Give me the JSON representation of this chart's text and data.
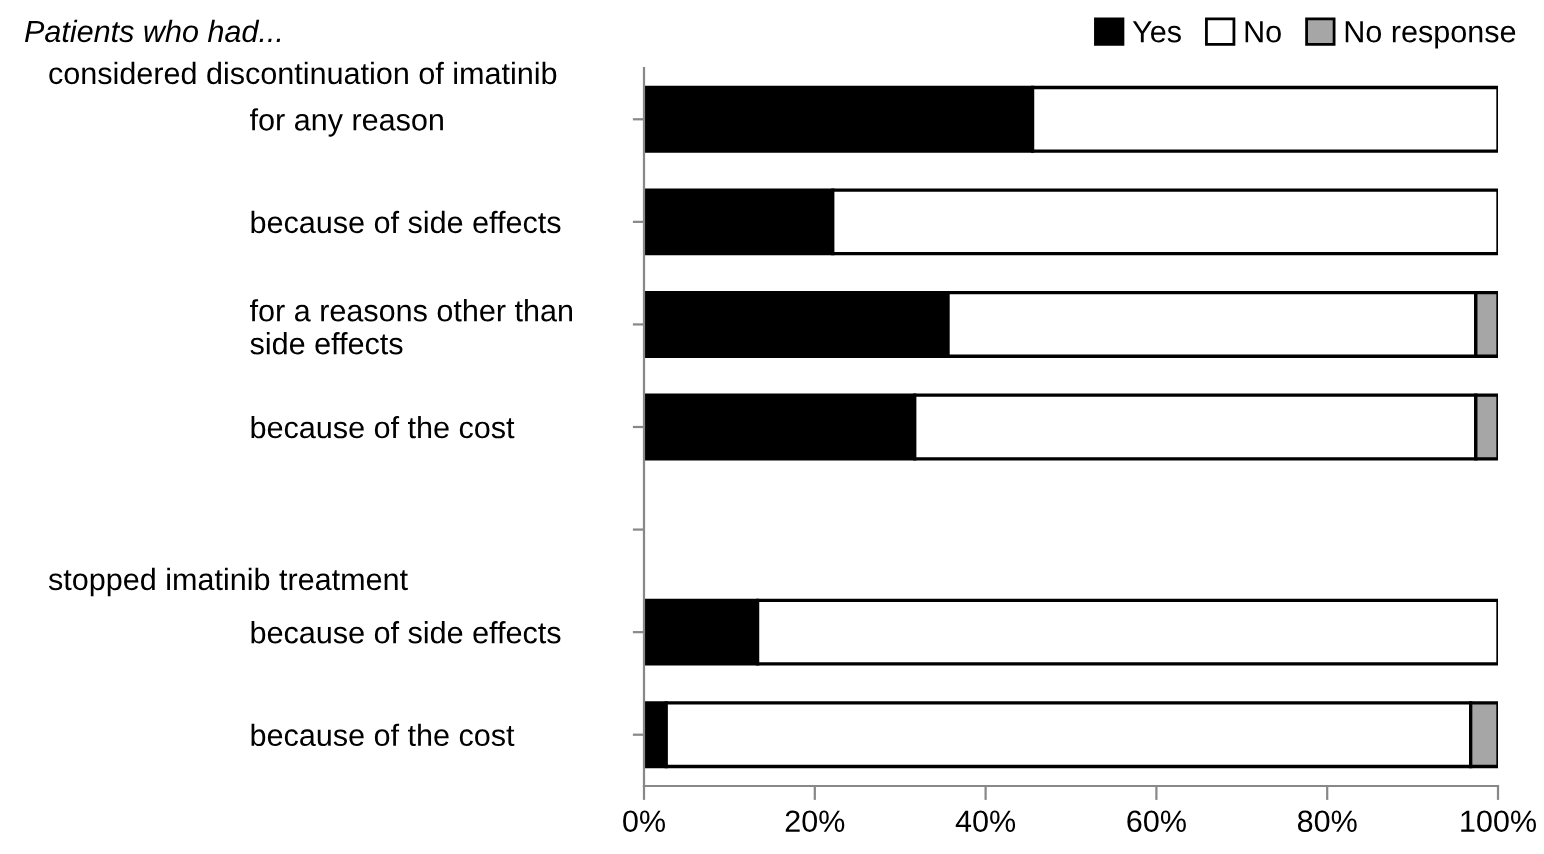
{
  "chart_data": {
    "type": "bar",
    "orientation": "horizontal",
    "stacked": true,
    "title": "Patients who had...",
    "annotations": [
      "considered discontinuation of imatinib",
      "stopped imatinib treatment"
    ],
    "categories": [
      "for any reason",
      "because of side effects",
      "for a reasons other than\nside effects",
      "because of the cost",
      null,
      "because of side effects",
      "because of the cost"
    ],
    "series": [
      {
        "name": "Yes",
        "color": "#000000",
        "values": [
          45.5,
          22.1,
          35.6,
          31.7,
          null,
          13.3,
          2.6
        ]
      },
      {
        "name": "No",
        "color": "#ffffff",
        "values": [
          54.5,
          77.9,
          61.8,
          65.7,
          null,
          86.7,
          94.2
        ]
      },
      {
        "name": "No response",
        "color": "#a6a6a6",
        "values": [
          0,
          0,
          2.6,
          2.6,
          null,
          0,
          3.2
        ]
      }
    ],
    "xlim": [
      0,
      100
    ],
    "xticks": [
      {
        "value": 0,
        "label": "0%"
      },
      {
        "value": 20,
        "label": "20%"
      },
      {
        "value": 40,
        "label": "40%"
      },
      {
        "value": 60,
        "label": "60%"
      },
      {
        "value": 80,
        "label": "80%"
      },
      {
        "value": 100,
        "label": "100%"
      }
    ],
    "grid": false,
    "legend": "top right"
  }
}
